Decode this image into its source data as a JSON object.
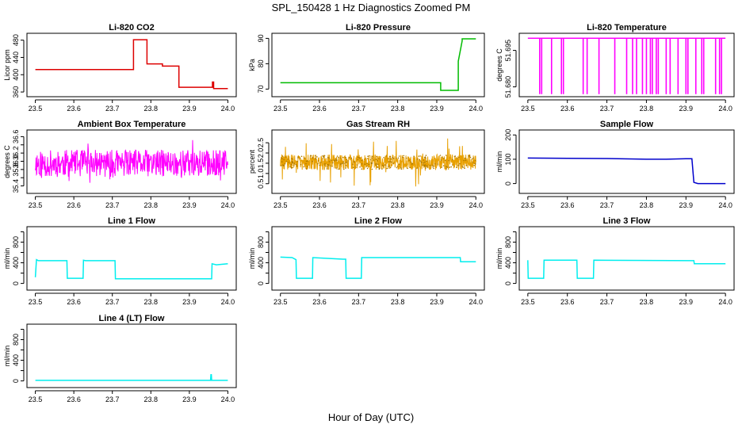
{
  "title": "SPL_150428  1 Hz Diagnostics Zoomed PM",
  "xlabel": "Hour of Day (UTC)",
  "colors": {
    "red": "#dd0000",
    "green": "#00bb00",
    "magenta": "#ff00ff",
    "orange": "#e8a000",
    "blue": "#0000cc",
    "cyan": "#00eeee"
  },
  "chart_data": [
    {
      "type": "line",
      "title": "Li-820 CO2",
      "ylabel": "Licor ppm",
      "color": "red",
      "xlim": [
        23.5,
        24.0
      ],
      "ylim": [
        355,
        490
      ],
      "yticks": [
        360,
        400,
        440,
        480
      ],
      "ytick_labels": [
        "360",
        "400",
        "440",
        "480"
      ],
      "xticks": [
        23.5,
        23.6,
        23.7,
        23.8,
        23.9,
        24.0
      ],
      "xtick_labels": [
        "23.5",
        "23.6",
        "23.7",
        "23.8",
        "23.9",
        "24.0"
      ],
      "x": [
        23.5,
        23.755,
        23.755,
        23.79,
        23.79,
        23.83,
        23.83,
        23.873,
        23.873,
        23.96,
        23.96,
        23.963,
        23.963,
        24.0
      ],
      "y": [
        412,
        412,
        481,
        481,
        425,
        425,
        420,
        420,
        371,
        371,
        383,
        383,
        368,
        368
      ]
    },
    {
      "type": "line",
      "title": "Li-820 Pressure",
      "ylabel": "kPa",
      "color": "green",
      "xlim": [
        23.5,
        24.0
      ],
      "ylim": [
        68,
        91
      ],
      "yticks": [
        70,
        80,
        90
      ],
      "ytick_labels": [
        "70",
        "80",
        "90"
      ],
      "xticks": [
        23.5,
        23.6,
        23.7,
        23.8,
        23.9,
        24.0
      ],
      "xtick_labels": [
        "23.5",
        "23.6",
        "23.7",
        "23.8",
        "23.9",
        "24.0"
      ],
      "x": [
        23.5,
        23.91,
        23.91,
        23.955,
        23.955,
        23.965,
        23.965,
        24.0
      ],
      "y": [
        72.5,
        72.5,
        69.5,
        69.5,
        81,
        89,
        89.8,
        89.8
      ]
    },
    {
      "type": "line",
      "title": "Li-820 Temperature",
      "ylabel": "degrees C",
      "color": "magenta",
      "xlim": [
        23.5,
        24.0
      ],
      "ylim": [
        51.677,
        51.701
      ],
      "yticks": [
        51.68,
        51.695
      ],
      "ytick_labels": [
        "51.680",
        "51.695"
      ],
      "xticks": [
        23.5,
        23.6,
        23.7,
        23.8,
        23.9,
        24.0
      ],
      "xtick_labels": [
        "23.5",
        "23.6",
        "23.7",
        "23.8",
        "23.9",
        "24.0"
      ],
      "base": 51.7,
      "low": 51.677,
      "spikes": [
        23.53,
        23.535,
        23.56,
        23.585,
        23.59,
        23.64,
        23.65,
        23.68,
        23.72,
        23.75,
        23.765,
        23.775,
        23.79,
        23.8,
        23.81,
        23.815,
        23.825,
        23.83,
        23.85,
        23.86,
        23.88,
        23.9,
        23.905,
        23.925,
        23.94,
        23.945,
        23.975,
        23.985,
        23.99
      ]
    },
    {
      "type": "line",
      "title": "Ambient Box Temperature",
      "ylabel": "degrees C",
      "color": "magenta",
      "xlim": [
        23.5,
        24.0
      ],
      "ylim": [
        35.28,
        36.7
      ],
      "yticks": [
        35.4,
        35.6,
        35.8,
        36.0,
        36.2,
        36.4,
        36.6
      ],
      "ytick_labels": [
        "35.4",
        "",
        "35.8",
        "36.0",
        "36.2",
        "",
        "36.6"
      ],
      "xticks": [
        23.5,
        23.6,
        23.7,
        23.8,
        23.9,
        24.0
      ],
      "xtick_labels": [
        "23.5",
        "23.6",
        "23.7",
        "23.8",
        "23.9",
        "24.0"
      ],
      "noise": {
        "center": 35.95,
        "amp": 0.33,
        "spike_amp": 0.62,
        "n": 520,
        "seed": 11
      }
    },
    {
      "type": "scatter",
      "title": "Gas Stream RH",
      "ylabel": "percent",
      "color": "orange",
      "xlim": [
        23.5,
        24.0
      ],
      "ylim": [
        0.15,
        3.0
      ],
      "yticks": [
        0.5,
        1.0,
        1.5,
        2.0,
        2.5
      ],
      "ytick_labels": [
        "0.5",
        "1.0",
        "1.5",
        "2.0",
        "2.5"
      ],
      "xticks": [
        23.5,
        23.6,
        23.7,
        23.8,
        23.9,
        24.0
      ],
      "xtick_labels": [
        "23.5",
        "23.6",
        "23.7",
        "23.8",
        "23.9",
        "24.0"
      ],
      "noise": {
        "center": 1.55,
        "amp": 0.38,
        "spike_amp": 1.2,
        "n": 700,
        "seed": 29
      }
    },
    {
      "type": "line",
      "title": "Sample Flow",
      "ylabel": "ml/min",
      "color": "blue",
      "xlim": [
        23.5,
        24.0
      ],
      "ylim": [
        -30,
        210
      ],
      "yticks": [
        0,
        100,
        200
      ],
      "ytick_labels": [
        "0",
        "100",
        "200"
      ],
      "xticks": [
        23.5,
        23.6,
        23.7,
        23.8,
        23.9,
        24.0
      ],
      "xtick_labels": [
        "23.5",
        "23.6",
        "23.7",
        "23.8",
        "23.9",
        "24.0"
      ],
      "x": [
        23.5,
        23.6,
        23.7,
        23.8,
        23.85,
        23.9,
        23.915,
        23.92,
        23.93,
        24.0
      ],
      "y": [
        105,
        104,
        103,
        100,
        100,
        102,
        102,
        5,
        0,
        0
      ]
    },
    {
      "type": "line",
      "title": "Line 1 Flow",
      "ylabel": "ml/min",
      "color": "cyan",
      "xlim": [
        23.5,
        24.0
      ],
      "ylim": [
        -80,
        1050
      ],
      "yticks": [
        0,
        200,
        400,
        600,
        800,
        1000
      ],
      "ytick_labels": [
        "0",
        "",
        "400",
        "",
        "800",
        ""
      ],
      "xticks": [
        23.5,
        23.6,
        23.7,
        23.8,
        23.9,
        24.0
      ],
      "xtick_labels": [
        "23.5",
        "23.6",
        "23.7",
        "23.8",
        "23.9",
        "24.0"
      ],
      "x": [
        23.5,
        23.503,
        23.508,
        23.582,
        23.583,
        23.624,
        23.625,
        23.63,
        23.707,
        23.708,
        23.958,
        23.959,
        23.97,
        24.0
      ],
      "y": [
        120,
        460,
        440,
        440,
        100,
        100,
        450,
        440,
        440,
        90,
        90,
        380,
        360,
        380
      ]
    },
    {
      "type": "line",
      "title": "Line 2 Flow",
      "ylabel": "ml/min",
      "color": "cyan",
      "xlim": [
        23.5,
        24.0
      ],
      "ylim": [
        -80,
        1050
      ],
      "yticks": [
        0,
        200,
        400,
        600,
        800,
        1000
      ],
      "ytick_labels": [
        "0",
        "",
        "400",
        "",
        "800",
        ""
      ],
      "xticks": [
        23.5,
        23.6,
        23.7,
        23.8,
        23.9,
        24.0
      ],
      "xtick_labels": [
        "23.5",
        "23.6",
        "23.7",
        "23.8",
        "23.9",
        "24.0"
      ],
      "x": [
        23.5,
        23.53,
        23.54,
        23.541,
        23.582,
        23.583,
        23.66,
        23.667,
        23.668,
        23.707,
        23.708,
        23.95,
        23.96,
        23.961,
        24.0
      ],
      "y": [
        510,
        500,
        460,
        100,
        100,
        500,
        470,
        470,
        100,
        100,
        500,
        500,
        500,
        420,
        420
      ]
    },
    {
      "type": "line",
      "title": "Line 3 Flow",
      "ylabel": "ml/min",
      "color": "cyan",
      "xlim": [
        23.5,
        24.0
      ],
      "ylim": [
        -80,
        1050
      ],
      "yticks": [
        0,
        200,
        400,
        600,
        800,
        1000
      ],
      "ytick_labels": [
        "0",
        "",
        "400",
        "",
        "800",
        ""
      ],
      "xticks": [
        23.5,
        23.6,
        23.7,
        23.8,
        23.9,
        24.0
      ],
      "xtick_labels": [
        "23.5",
        "23.6",
        "23.7",
        "23.8",
        "23.9",
        "24.0"
      ],
      "x": [
        23.5,
        23.501,
        23.54,
        23.541,
        23.624,
        23.625,
        23.666,
        23.667,
        23.92,
        23.921,
        24.0
      ],
      "y": [
        450,
        100,
        100,
        450,
        450,
        100,
        100,
        450,
        440,
        380,
        380
      ]
    },
    {
      "type": "line",
      "title": "Line 4 (LT) Flow",
      "ylabel": "ml/min",
      "color": "cyan",
      "xlim": [
        23.5,
        24.0
      ],
      "ylim": [
        -80,
        1050
      ],
      "yticks": [
        0,
        200,
        400,
        600,
        800,
        1000
      ],
      "ytick_labels": [
        "0",
        "",
        "400",
        "",
        "800",
        ""
      ],
      "xticks": [
        23.5,
        23.6,
        23.7,
        23.8,
        23.9,
        24.0
      ],
      "xtick_labels": [
        "23.5",
        "23.6",
        "23.7",
        "23.8",
        "23.9",
        "24.0"
      ],
      "x": [
        23.5,
        23.955,
        23.956,
        23.957,
        23.958,
        24.0
      ],
      "y": [
        10,
        10,
        120,
        120,
        10,
        10
      ]
    }
  ]
}
